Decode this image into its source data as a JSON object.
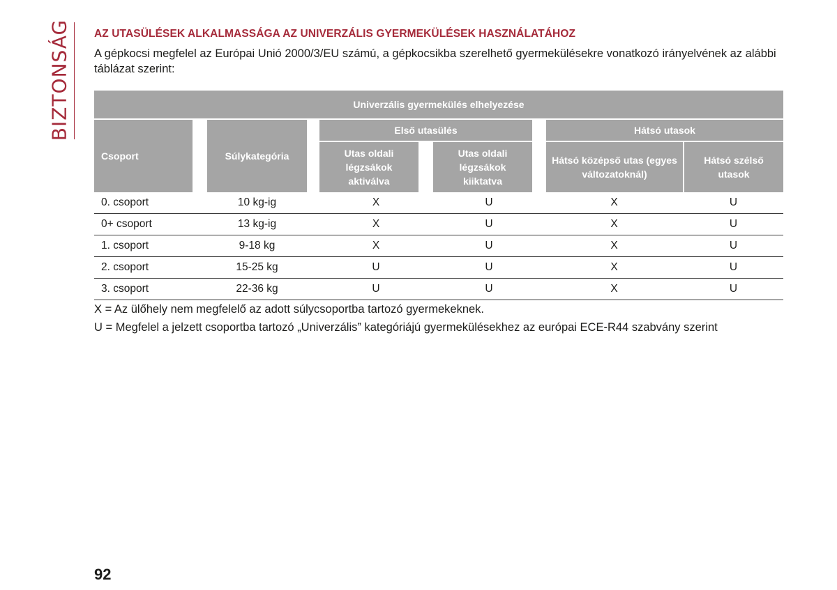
{
  "side_tab": "BIZTONSÁG",
  "title": "AZ UTASÜLÉSEK ALKALMASSÁGA AZ UNIVERZÁLIS GYERMEKÜLÉSEK HASZNÁLATÁHOZ",
  "intro": "A gépkocsi megfelel az Európai Unió 2000/3/EU számú, a gépkocsikba szerelhető gyermekülésekre vonatkozó irányelvének az alábbi táblázat szerint:",
  "table": {
    "header_main": "Univerzális gyermekülés elhelyezése",
    "col_group": "Csoport",
    "col_weight": "Súlykategória",
    "front_seat": "Első utasülés",
    "rear_seats": "Hátsó utasok",
    "sub_front_active": "Utas oldali légzsákok aktiválva",
    "sub_front_disabled": "Utas oldali légzsákok kiiktatva",
    "sub_rear_middle": "Hátsó középső utas (egyes változatoknál)",
    "sub_rear_outer": "Hátsó szélső utasok",
    "rows": [
      {
        "group": "0. csoport",
        "weight": "10 kg-ig",
        "front_active": "X",
        "front_disabled": "U",
        "rear_middle": "X",
        "rear_outer": "U"
      },
      {
        "group": "0+ csoport",
        "weight": "13 kg-ig",
        "front_active": "X",
        "front_disabled": "U",
        "rear_middle": "X",
        "rear_outer": "U"
      },
      {
        "group": "1. csoport",
        "weight": "9-18 kg",
        "front_active": "X",
        "front_disabled": "U",
        "rear_middle": "X",
        "rear_outer": "U"
      },
      {
        "group": "2. csoport",
        "weight": "15-25 kg",
        "front_active": "U",
        "front_disabled": "U",
        "rear_middle": "X",
        "rear_outer": "U"
      },
      {
        "group": "3. csoport",
        "weight": "22-36 kg",
        "front_active": "U",
        "front_disabled": "U",
        "rear_middle": "X",
        "rear_outer": "U"
      }
    ]
  },
  "legend": {
    "x": "X = Az ülőhely nem megfelelő az adott súlycsoportba tartozó gyermekeknek.",
    "u": "U = Megfelel a jelzett csoportba tartozó „Univerzális” kategóriájú gyermekülésekhez az európai ECE-R44 szabvány szerint"
  },
  "page_number": "92"
}
